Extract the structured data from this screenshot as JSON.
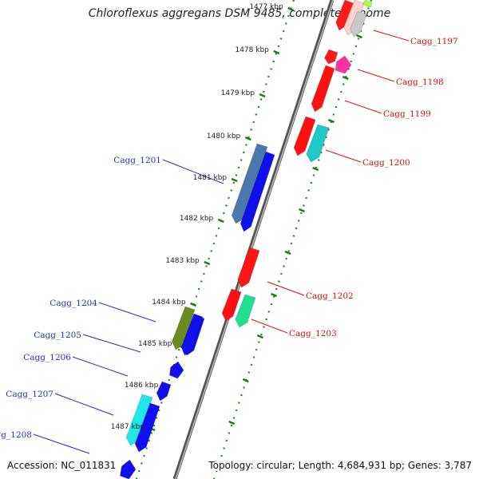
{
  "title": "Chloroflexus aggregans DSM 9485, complete genome",
  "footer": {
    "accession": "Accession: NC_011831",
    "summary": "Topology: circular; Length: 4,684,931 bp; Genes: 3,787"
  },
  "kbp_labels": [
    "1477 kbp",
    "1478 kbp",
    "1479 kbp",
    "1480 kbp",
    "1481 kbp",
    "1482 kbp",
    "1483 kbp",
    "1484 kbp",
    "1485 kbp",
    "1486 kbp",
    "1487 kbp"
  ],
  "genes_right": [
    {
      "label": "Cagg_1197",
      "color": "#ff2020"
    },
    {
      "label": "Cagg_1198",
      "color": "#ff2a8a"
    },
    {
      "label": "Cagg_1199",
      "color": "#ff1010"
    },
    {
      "label": "Cagg_1200",
      "color": "#20c8c8"
    },
    {
      "label": "Cagg_1202",
      "color": "#ff1515"
    },
    {
      "label": "Cagg_1203",
      "color": "#20e090"
    }
  ],
  "genes_left": [
    {
      "label": "Cagg_1201",
      "color": "#4a78aa"
    },
    {
      "label": "Cagg_1204",
      "color": "#6b8a20"
    },
    {
      "label": "Cagg_1205",
      "color": "#1010ee"
    },
    {
      "label": "Cagg_1206",
      "color": "#1010ee"
    },
    {
      "label": "Cagg_1207",
      "color": "#20e8e8"
    },
    {
      "label": "Cagg_1208",
      "color": "#1010ee"
    }
  ]
}
